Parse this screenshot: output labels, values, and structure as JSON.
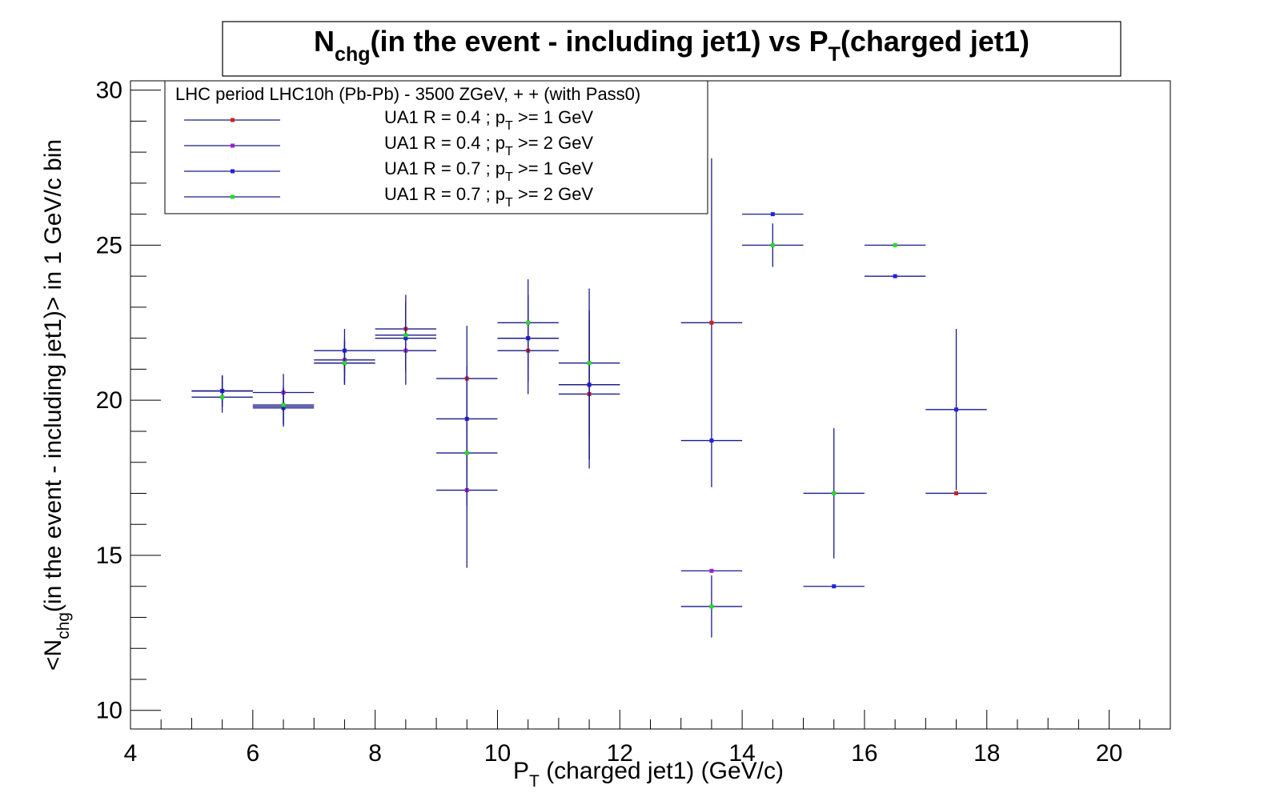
{
  "chart_data": {
    "type": "scatter",
    "title": {
      "main": "N",
      "sub": "chg",
      "mid": "(in the event - including jet1) vs P",
      "sub2": "T",
      "end": "(charged jet1)"
    },
    "xlabel": {
      "main": "P",
      "sub": "T",
      "rest": " (charged jet1) (GeV/c)"
    },
    "ylabel": {
      "pre": "<N",
      "sub": "chg",
      "rest": "(in the event - including jet1)> in 1 GeV/c bin"
    },
    "xlim": [
      4,
      21
    ],
    "ylim": [
      9.4,
      30.3
    ],
    "x_ticks": [
      4,
      6,
      8,
      10,
      12,
      14,
      16,
      18,
      20
    ],
    "y_ticks": [
      10,
      15,
      20,
      25,
      30
    ],
    "legend_header": "LHC period LHC10h (Pb-Pb) - 3500 ZGeV, + + (with Pass0)",
    "series": [
      {
        "name": "UA1 R = 0.4 ; p_T >= 1 GeV",
        "label_pre": "UA1 R = 0.4 ; p",
        "label_sub": "T",
        "label_post": " >= 1 GeV",
        "marker_color": "#cc2222",
        "points": [
          {
            "x": 5.5,
            "y": 20.3,
            "yerr": 0.5
          },
          {
            "x": 6.5,
            "y": 19.8,
            "yerr": 0.6
          },
          {
            "x": 7.5,
            "y": 21.2,
            "yerr": 0.7
          },
          {
            "x": 8.5,
            "y": 22.3,
            "yerr": 1.1
          },
          {
            "x": 9.5,
            "y": 20.7,
            "yerr": 1.7
          },
          {
            "x": 10.5,
            "y": 21.6,
            "yerr": 1.4
          },
          {
            "x": 11.5,
            "y": 20.2,
            "yerr": 2.4
          },
          {
            "x": 13.5,
            "y": 22.5,
            "yerr": 5.3
          },
          {
            "x": 17.5,
            "y": 17.0,
            "yerr": 0
          }
        ]
      },
      {
        "name": "UA1 R = 0.4 ; p_T >= 2 GeV",
        "label_pre": "UA1 R = 0.4 ; p",
        "label_sub": "T",
        "label_post": " >= 2 GeV",
        "marker_color": "#9922cc",
        "points": [
          {
            "x": 5.5,
            "y": 20.3,
            "yerr": 0.5
          },
          {
            "x": 6.5,
            "y": 20.25,
            "yerr": 0.6
          },
          {
            "x": 7.5,
            "y": 21.3,
            "yerr": 0.7
          },
          {
            "x": 8.5,
            "y": 21.6,
            "yerr": 1.1
          },
          {
            "x": 9.5,
            "y": 17.1,
            "yerr": 2.5
          },
          {
            "x": 10.5,
            "y": 22.0,
            "yerr": 1.4
          },
          {
            "x": 11.5,
            "y": 20.5,
            "yerr": 2.4
          },
          {
            "x": 13.5,
            "y": 14.5,
            "yerr": 0
          }
        ]
      },
      {
        "name": "UA1 R = 0.7 ; p_T >= 1 GeV",
        "label_pre": "UA1 R = 0.7 ; p",
        "label_sub": "T",
        "label_post": " >= 1 GeV",
        "marker_color": "#2222dd",
        "points": [
          {
            "x": 5.5,
            "y": 20.3,
            "yerr": 0.5
          },
          {
            "x": 6.5,
            "y": 19.75,
            "yerr": 0.6
          },
          {
            "x": 7.5,
            "y": 21.6,
            "yerr": 0.7
          },
          {
            "x": 8.5,
            "y": 22.0,
            "yerr": 1.1
          },
          {
            "x": 9.5,
            "y": 19.4,
            "yerr": 1.7
          },
          {
            "x": 10.5,
            "y": 22.0,
            "yerr": 1.4
          },
          {
            "x": 11.5,
            "y": 20.5,
            "yerr": 2.4
          },
          {
            "x": 13.5,
            "y": 18.7,
            "yerr": 0
          },
          {
            "x": 14.5,
            "y": 26.0,
            "yerr": 0
          },
          {
            "x": 15.5,
            "y": 14.0,
            "yerr": 0
          },
          {
            "x": 16.5,
            "y": 24.0,
            "yerr": 0
          },
          {
            "x": 17.5,
            "y": 19.7,
            "yerr": 2.6
          }
        ]
      },
      {
        "name": "UA1 R = 0.7 ; p_T >= 2 GeV",
        "label_pre": "UA1 R = 0.7 ; p",
        "label_sub": "T",
        "label_post": " >= 2 GeV",
        "marker_color": "#22dd22",
        "points": [
          {
            "x": 5.5,
            "y": 20.1,
            "yerr": 0.5
          },
          {
            "x": 6.5,
            "y": 19.85,
            "yerr": 0.6
          },
          {
            "x": 7.5,
            "y": 21.2,
            "yerr": 0.7
          },
          {
            "x": 8.5,
            "y": 22.1,
            "yerr": 1.1
          },
          {
            "x": 9.5,
            "y": 18.3,
            "yerr": 1.7
          },
          {
            "x": 10.5,
            "y": 22.5,
            "yerr": 1.4
          },
          {
            "x": 11.5,
            "y": 21.2,
            "yerr": 2.4
          },
          {
            "x": 13.5,
            "y": 13.35,
            "yerr": 1.0
          },
          {
            "x": 14.5,
            "y": 25.0,
            "yerr": 0.7
          },
          {
            "x": 15.5,
            "y": 17.0,
            "yerr": 2.1
          },
          {
            "x": 16.5,
            "y": 25.0,
            "yerr": 0
          }
        ]
      }
    ],
    "line_color": "#1a1a88",
    "grid": false,
    "legend_position": "top-left"
  }
}
